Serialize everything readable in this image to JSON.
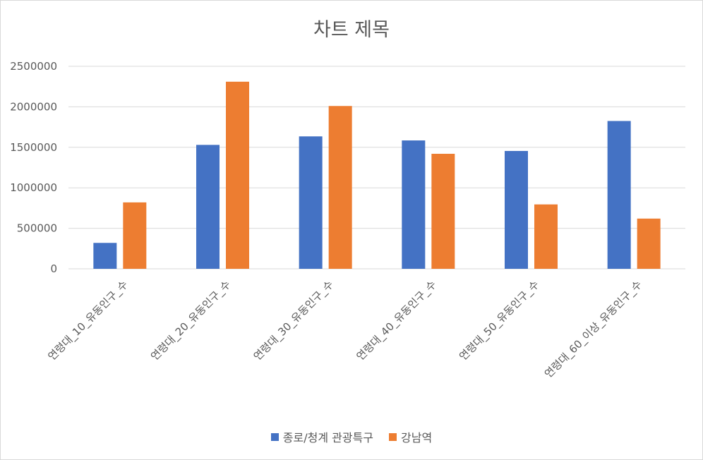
{
  "chart_data": {
    "type": "bar",
    "title": "차트 제목",
    "categories": [
      "연령대_10_유동인구_수",
      "연령대_20_유동인구_수",
      "연령대_30_유동인구_수",
      "연령대_40_유동인구_수",
      "연령대_50_유동인구_수",
      "연령대_60_이상_유동인구_수"
    ],
    "series": [
      {
        "name": "종로/청계 관광특구",
        "color": "#4472C4",
        "values": [
          320000,
          1530000,
          1635000,
          1585000,
          1455000,
          1825000
        ]
      },
      {
        "name": "강남역",
        "color": "#ED7D31",
        "values": [
          820000,
          2310000,
          2010000,
          1420000,
          795000,
          620000
        ]
      }
    ],
    "y_ticks": [
      "0",
      "500000",
      "1000000",
      "1500000",
      "2000000",
      "2500000"
    ],
    "ylim": [
      0,
      2500000
    ],
    "grid": true,
    "legend_position": "bottom"
  }
}
